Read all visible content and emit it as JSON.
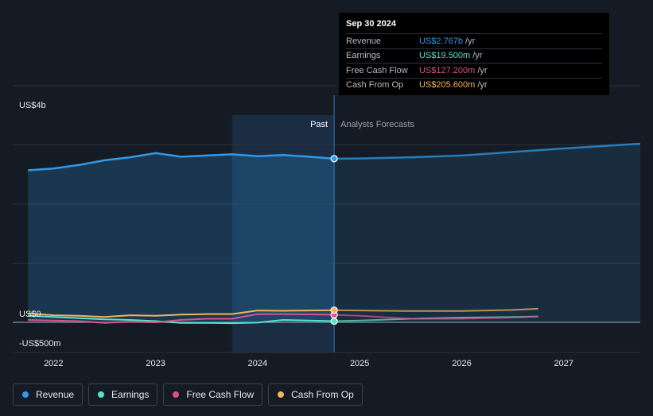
{
  "tooltip": {
    "date": "Sep 30 2024",
    "rows": [
      {
        "label": "Revenue",
        "value": "US$2.767b",
        "unit": "/yr",
        "color": "#2f9ae8"
      },
      {
        "label": "Earnings",
        "value": "US$19.500m",
        "unit": "/yr",
        "color": "#55e3c8"
      },
      {
        "label": "Free Cash Flow",
        "value": "US$127.200m",
        "unit": "/yr",
        "color": "#d8528c"
      },
      {
        "label": "Cash From Op",
        "value": "US$205.600m",
        "unit": "/yr",
        "color": "#f2b35e"
      }
    ]
  },
  "legend": [
    {
      "label": "Revenue",
      "color": "#2f9ae8"
    },
    {
      "label": "Earnings",
      "color": "#55e3c8"
    },
    {
      "label": "Free Cash Flow",
      "color": "#d8528c"
    },
    {
      "label": "Cash From Op",
      "color": "#f2b35e"
    }
  ],
  "chart_data": {
    "type": "line",
    "ylim": [
      -500,
      4000
    ],
    "y_gridlines": [
      0,
      1000,
      2000,
      3000,
      4000
    ],
    "y_tick_labels": [
      {
        "value": 4000,
        "label": "US$4b"
      },
      {
        "value": 0,
        "label": "US$0"
      },
      {
        "value": -500,
        "label": "-US$500m"
      }
    ],
    "xlim": [
      2021.6,
      2027.75
    ],
    "x_ticks": [
      {
        "value": 2022,
        "label": "2022"
      },
      {
        "value": 2023,
        "label": "2023"
      },
      {
        "value": 2024,
        "label": "2024"
      },
      {
        "value": 2025,
        "label": "2025"
      },
      {
        "value": 2026,
        "label": "2026"
      },
      {
        "value": 2027,
        "label": "2027"
      }
    ],
    "past_label": "Past",
    "forecast_label": "Analysts Forecasts",
    "highlight_start": 2023.75,
    "divider": 2024.75,
    "units": "US$ millions",
    "series": [
      {
        "name": "Revenue",
        "color": "#2f9ae8",
        "past": [
          [
            2021.75,
            2570
          ],
          [
            2022.0,
            2600
          ],
          [
            2022.25,
            2660
          ],
          [
            2022.5,
            2740
          ],
          [
            2022.75,
            2790
          ],
          [
            2023.0,
            2860
          ],
          [
            2023.25,
            2800
          ],
          [
            2023.5,
            2820
          ],
          [
            2023.75,
            2840
          ],
          [
            2024.0,
            2810
          ],
          [
            2024.25,
            2830
          ],
          [
            2024.5,
            2800
          ],
          [
            2024.75,
            2767
          ]
        ],
        "forecast": [
          [
            2024.75,
            2767
          ],
          [
            2025.0,
            2770
          ],
          [
            2025.5,
            2790
          ],
          [
            2026.0,
            2820
          ],
          [
            2026.5,
            2880
          ],
          [
            2027.0,
            2940
          ],
          [
            2027.75,
            3020
          ]
        ]
      },
      {
        "name": "Earnings",
        "color": "#55e3c8",
        "past": [
          [
            2021.75,
            110
          ],
          [
            2022.0,
            90
          ],
          [
            2022.25,
            70
          ],
          [
            2022.5,
            50
          ],
          [
            2022.75,
            40
          ],
          [
            2023.0,
            20
          ],
          [
            2023.25,
            -10
          ],
          [
            2023.5,
            -10
          ],
          [
            2023.75,
            -15
          ],
          [
            2024.0,
            -5
          ],
          [
            2024.25,
            40
          ],
          [
            2024.5,
            30
          ],
          [
            2024.75,
            19.5
          ]
        ],
        "forecast": [
          [
            2024.75,
            19.5
          ],
          [
            2025.0,
            30
          ],
          [
            2025.5,
            60
          ],
          [
            2026.0,
            80
          ],
          [
            2026.5,
            90
          ],
          [
            2026.75,
            100
          ]
        ]
      },
      {
        "name": "Free Cash Flow",
        "color": "#d8528c",
        "past": [
          [
            2021.75,
            40
          ],
          [
            2022.0,
            30
          ],
          [
            2022.25,
            20
          ],
          [
            2022.5,
            -10
          ],
          [
            2022.75,
            10
          ],
          [
            2023.0,
            0
          ],
          [
            2023.25,
            40
          ],
          [
            2023.5,
            60
          ],
          [
            2023.75,
            60
          ],
          [
            2024.0,
            140
          ],
          [
            2024.25,
            140
          ],
          [
            2024.5,
            135
          ],
          [
            2024.75,
            127.2
          ]
        ],
        "forecast": [
          [
            2024.75,
            127.2
          ],
          [
            2025.0,
            110
          ],
          [
            2025.5,
            60
          ],
          [
            2026.0,
            60
          ],
          [
            2026.5,
            80
          ],
          [
            2026.75,
            100
          ]
        ]
      },
      {
        "name": "Cash From Op",
        "color": "#f2b35e",
        "past": [
          [
            2021.75,
            150
          ],
          [
            2022.0,
            120
          ],
          [
            2022.25,
            110
          ],
          [
            2022.5,
            90
          ],
          [
            2022.75,
            120
          ],
          [
            2023.0,
            110
          ],
          [
            2023.25,
            130
          ],
          [
            2023.5,
            140
          ],
          [
            2023.75,
            140
          ],
          [
            2024.0,
            200
          ],
          [
            2024.25,
            195
          ],
          [
            2024.5,
            200
          ],
          [
            2024.75,
            205.6
          ]
        ],
        "forecast": [
          [
            2024.75,
            205.6
          ],
          [
            2025.0,
            200
          ],
          [
            2025.5,
            190
          ],
          [
            2026.0,
            190
          ],
          [
            2026.5,
            210
          ],
          [
            2026.75,
            230
          ]
        ]
      }
    ]
  }
}
